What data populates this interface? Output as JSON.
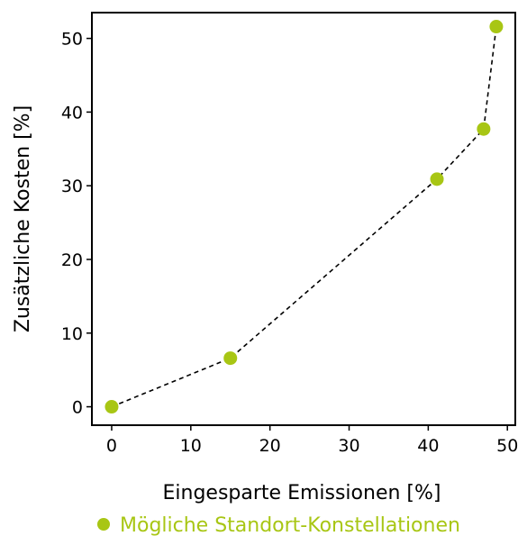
{
  "chart_data": {
    "type": "scatter",
    "title": "",
    "xlabel": "Eingesparte Emissionen [%]",
    "ylabel": "Zusätzliche Kosten [%]",
    "xlim": [
      -2.5,
      51
    ],
    "ylim": [
      -2.5,
      53.5
    ],
    "xticks": [
      0,
      10,
      20,
      30,
      40,
      50
    ],
    "yticks": [
      0,
      10,
      20,
      30,
      40,
      50
    ],
    "grid": false,
    "legend_position": "bottom-center",
    "series": [
      {
        "name": "Mögliche Standort-Konstellationen",
        "color": "#a8c614",
        "connector": "dashed-black",
        "x": [
          0,
          15,
          41.1,
          47,
          48.6
        ],
        "y": [
          0,
          6.6,
          30.9,
          37.7,
          51.6
        ]
      }
    ]
  }
}
